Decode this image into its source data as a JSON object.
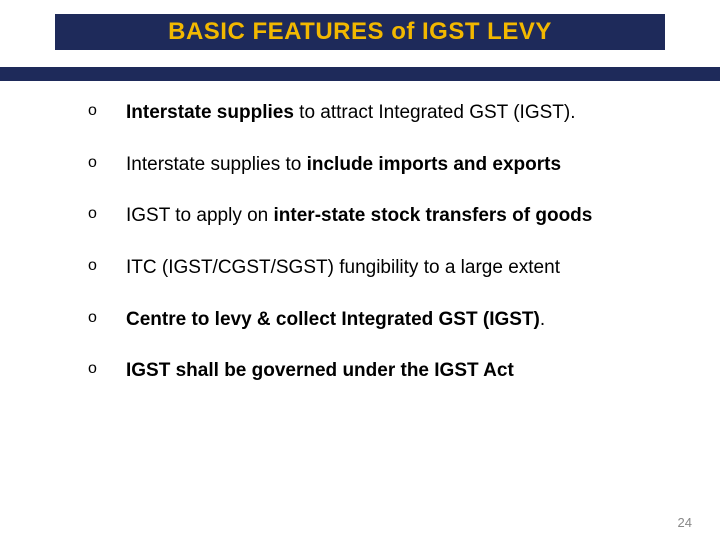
{
  "colors": {
    "title_bg": "#1e2a5a",
    "title_fg": "#f2b800",
    "underline": "#1e2a5a",
    "text": "#000000",
    "page_num": "#888888",
    "background": "#ffffff"
  },
  "typography": {
    "title_fontsize": 24,
    "body_fontsize": 19,
    "marker_fontsize": 16,
    "pagenum_fontsize": 13,
    "font_family": "Arial"
  },
  "title": "BASIC FEATURES  of  IGST  LEVY",
  "bullets": [
    {
      "marker": "o",
      "segments": [
        {
          "text": " ",
          "bold": false
        },
        {
          "text": "Interstate supplies",
          "bold": true
        },
        {
          "text": " to attract Integrated GST (IGST).",
          "bold": false
        }
      ]
    },
    {
      "marker": "o",
      "segments": [
        {
          "text": " Interstate supplies to ",
          "bold": false
        },
        {
          "text": "include imports and exports",
          "bold": true
        }
      ]
    },
    {
      "marker": "o",
      "segments": [
        {
          "text": " IGST to apply on ",
          "bold": false
        },
        {
          "text": "inter-state stock transfers of goods",
          "bold": true
        }
      ]
    },
    {
      "marker": "o",
      "segments": [
        {
          "text": " ITC (IGST/CGST/SGST) fungibility to a large extent",
          "bold": false
        }
      ]
    },
    {
      "marker": "o",
      "segments": [
        {
          "text": " ",
          "bold": false
        },
        {
          "text": "Centre to levy & collect Integrated GST (IGST)",
          "bold": true
        },
        {
          "text": ".",
          "bold": false
        }
      ]
    },
    {
      "marker": "o",
      "segments": [
        {
          "text": " ",
          "bold": false
        },
        {
          "text": "IGST shall be governed under the IGST Act",
          "bold": true
        }
      ]
    }
  ],
  "page_number": "24"
}
